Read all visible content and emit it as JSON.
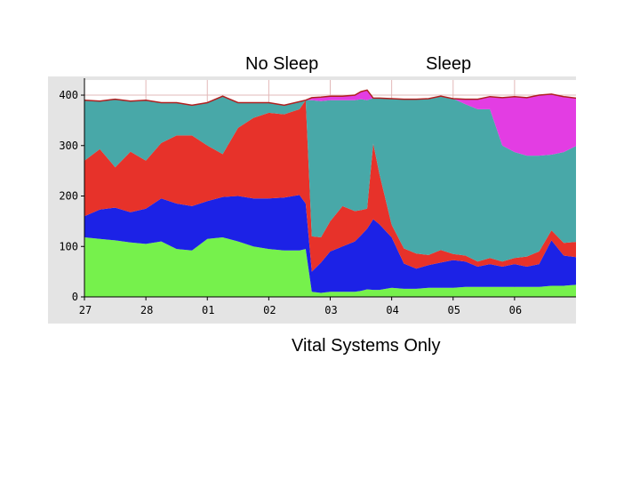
{
  "annotations": {
    "no_sleep": "No Sleep",
    "sleep": "Sleep",
    "vital_systems": "Vital Systems Only"
  },
  "chart_data": {
    "type": "area",
    "stacked": true,
    "title": "",
    "xlabel": "",
    "ylabel": "",
    "ylim": [
      0,
      430
    ],
    "yticks": [
      0,
      100,
      200,
      300,
      400
    ],
    "xlim": [
      0,
      8.0
    ],
    "x_tick_labels": [
      "27",
      "28",
      "01",
      "02",
      "03",
      "04",
      "05",
      "06"
    ],
    "x_tick_positions": [
      0,
      1,
      2,
      3,
      4,
      5,
      6,
      7
    ],
    "grid": true,
    "colors": {
      "background": "#e4e4e4",
      "plot_bg": "#ffffff",
      "grid": "#e2b8b8",
      "axis": "#000000",
      "green": "#76f14c",
      "blue": "#1c22e6",
      "red": "#e7322a",
      "teal": "#48a8a8",
      "magenta": "#e33de3",
      "top_line": "#b02020"
    },
    "x": [
      0.0,
      0.25,
      0.5,
      0.75,
      1.0,
      1.25,
      1.5,
      1.75,
      2.0,
      2.25,
      2.5,
      2.75,
      3.0,
      3.25,
      3.5,
      3.6,
      3.7,
      3.85,
      4.0,
      4.2,
      4.4,
      4.5,
      4.6,
      4.7,
      4.8,
      5.0,
      5.2,
      5.4,
      5.6,
      5.8,
      6.0,
      6.2,
      6.4,
      6.6,
      6.8,
      7.0,
      7.2,
      7.4,
      7.6,
      7.8,
      8.0
    ],
    "series": [
      {
        "color_key": "green",
        "values": [
          118,
          115,
          112,
          108,
          105,
          110,
          95,
          92,
          115,
          118,
          110,
          100,
          95,
          92,
          92,
          95,
          10,
          8,
          10,
          10,
          10,
          12,
          15,
          14,
          14,
          18,
          16,
          16,
          18,
          18,
          18,
          20,
          20,
          20,
          20,
          20,
          20,
          20,
          22,
          22,
          24
        ]
      },
      {
        "color_key": "blue",
        "values": [
          42,
          58,
          65,
          60,
          70,
          85,
          90,
          88,
          75,
          80,
          90,
          95,
          100,
          105,
          110,
          90,
          40,
          60,
          80,
          90,
          100,
          110,
          120,
          140,
          130,
          100,
          50,
          40,
          45,
          50,
          55,
          50,
          40,
          45,
          40,
          45,
          40,
          45,
          90,
          60,
          55
        ]
      },
      {
        "color_key": "red",
        "values": [
          110,
          120,
          80,
          120,
          95,
          110,
          135,
          140,
          110,
          85,
          135,
          160,
          170,
          165,
          170,
          205,
          70,
          50,
          60,
          80,
          60,
          50,
          40,
          150,
          100,
          25,
          30,
          30,
          20,
          25,
          12,
          12,
          10,
          12,
          10,
          12,
          20,
          25,
          20,
          25,
          30
        ]
      },
      {
        "color_key": "teal",
        "values": [
          120,
          95,
          135,
          100,
          120,
          80,
          65,
          60,
          85,
          115,
          50,
          30,
          20,
          18,
          15,
          0,
          270,
          270,
          240,
          210,
          220,
          220,
          215,
          90,
          150,
          250,
          296,
          306,
          310,
          305,
          308,
          300,
          302,
          295,
          230,
          210,
          200,
          190,
          150,
          180,
          190
        ]
      },
      {
        "color_key": "magenta",
        "values": [
          0,
          0,
          0,
          0,
          0,
          0,
          0,
          0,
          0,
          0,
          0,
          0,
          0,
          0,
          0,
          0,
          5,
          8,
          8,
          8,
          10,
          15,
          20,
          0,
          0,
          0,
          0,
          0,
          0,
          0,
          0,
          10,
          20,
          25,
          95,
          110,
          115,
          120,
          120,
          110,
          95
        ]
      }
    ]
  }
}
